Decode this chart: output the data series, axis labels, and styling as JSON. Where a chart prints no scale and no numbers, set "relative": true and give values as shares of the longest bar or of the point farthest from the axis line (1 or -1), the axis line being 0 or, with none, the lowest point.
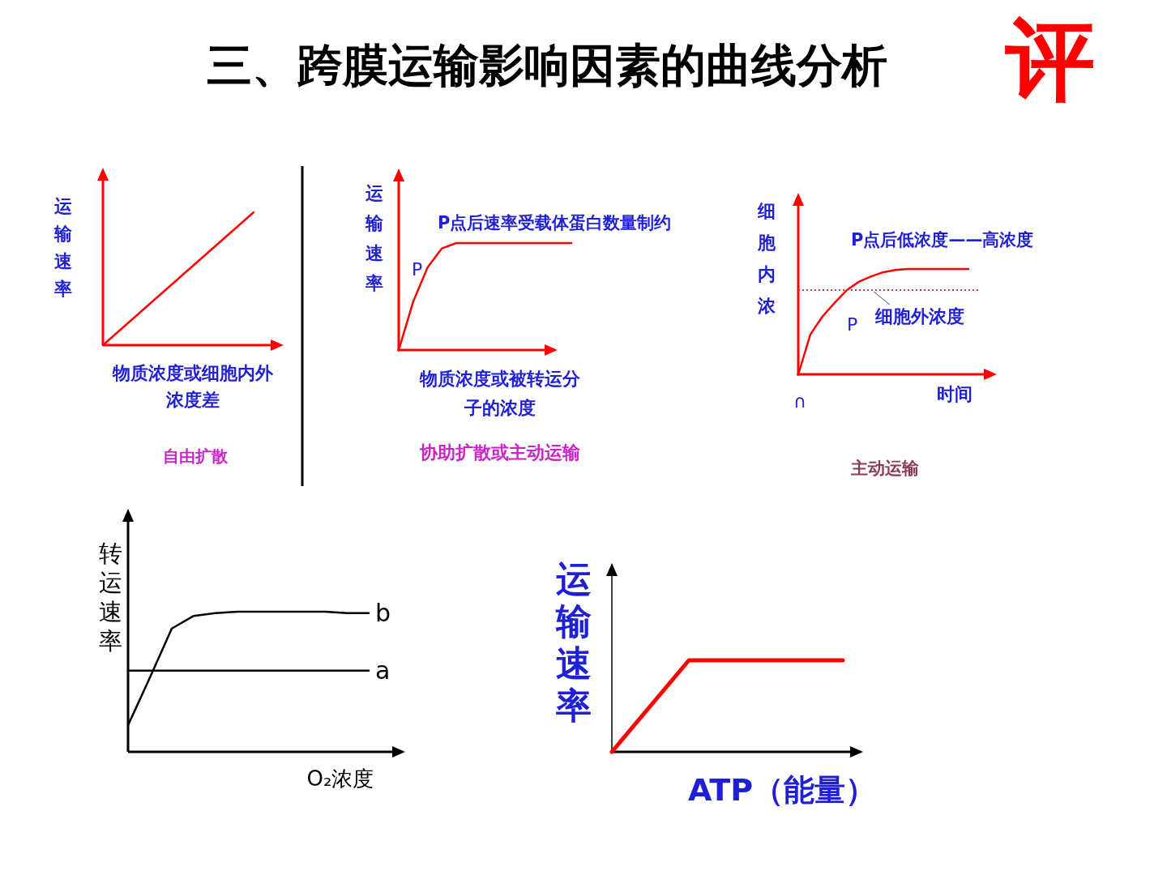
{
  "chart_data": [
    {
      "type": "line",
      "relative": true,
      "title": "三、跨膜运输影响因素的曲线分析",
      "annotations": [
        "评"
      ],
      "xlabel": "物质浓度或细胞内外浓度差",
      "ylabel": "运输速率",
      "subtitle": "自由扩散",
      "categories": [
        null,
        null
      ],
      "series": [
        {
          "color": "#ff0000",
          "values": [
            0,
            1
          ]
        }
      ]
    },
    {
      "type": "line",
      "relative": true,
      "xlabel": "物质浓度或被转运分子的浓度",
      "ylabel": "运输速率",
      "subtitle": "协助扩散或主动运输",
      "annotations": [
        "P点后速率受载体蛋白数量制约",
        "P"
      ],
      "categories": [
        null,
        null,
        null,
        null,
        null,
        null,
        null,
        null,
        null,
        null,
        null,
        null,
        null
      ],
      "series": [
        {
          "color": "#ff0000",
          "values": [
            0,
            0.45,
            0.77,
            0.95,
            1,
            1,
            1,
            1,
            1,
            1,
            1,
            1,
            1
          ]
        }
      ]
    },
    {
      "type": "line",
      "relative": true,
      "xlabel": "时间",
      "ylabel": "细胞内浓",
      "subtitle": "主动运输",
      "annotations": [
        "P点后低浓度——高浓度",
        "∩",
        "P"
      ],
      "categories": [
        null,
        null,
        null,
        null,
        null,
        null,
        null,
        null,
        null,
        null,
        null,
        null,
        null,
        null,
        null
      ],
      "series": [
        {
          "color": "#ff0000",
          "values": [
            0,
            0.38,
            0.55,
            0.68,
            0.8,
            0.88,
            0.93,
            0.97,
            0.99,
            1,
            1,
            1,
            1,
            1,
            1
          ]
        }
      ],
      "ref_lines": [
        {
          "axis": "y",
          "value": 0.8,
          "label": "细胞外浓度",
          "color": "#c04040",
          "line_style": "dotted"
        }
      ]
    },
    {
      "type": "line",
      "relative": true,
      "xlabel": "O₂浓度",
      "ylabel": "转运速率",
      "categories": [
        null,
        null,
        null,
        null,
        null,
        null,
        null,
        null,
        null,
        null,
        null,
        null
      ],
      "series": [
        {
          "name": "b",
          "color": "#000000",
          "values": [
            0.19,
            0.53,
            0.88,
            0.97,
            0.99,
            1,
            1,
            1,
            1,
            1,
            0.99,
            0.99
          ]
        },
        {
          "name": "a",
          "color": "#000000",
          "values": [
            0.58,
            0.58,
            0.58,
            0.58,
            0.58,
            0.58,
            0.58,
            0.58,
            0.58,
            0.58,
            0.58,
            0.58
          ]
        }
      ]
    },
    {
      "type": "line",
      "relative": true,
      "xlabel": "ATP（能量）",
      "ylabel": "运输速率",
      "categories": [
        null,
        null,
        null,
        null
      ],
      "series": [
        {
          "color": "#ff0000",
          "values": [
            0,
            1,
            1,
            1
          ]
        }
      ]
    }
  ]
}
